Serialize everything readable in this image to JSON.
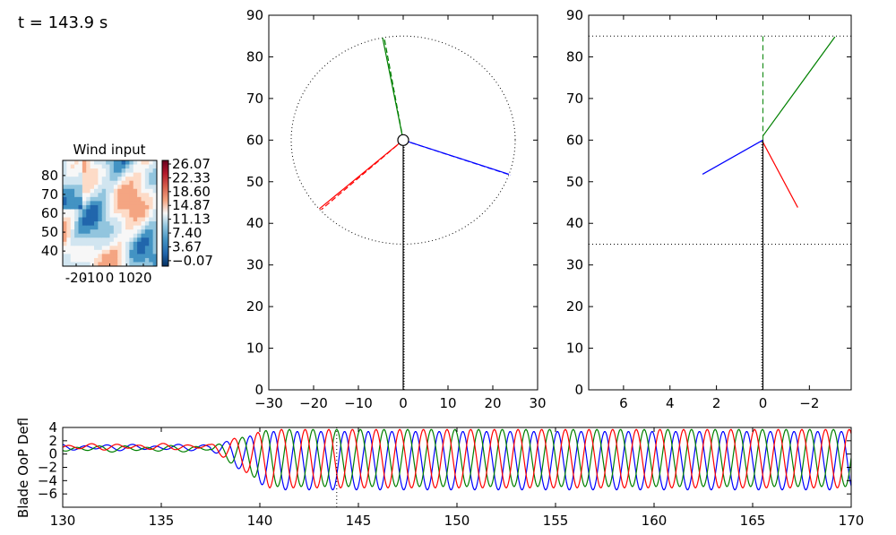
{
  "time_label": "t = 143.9 s",
  "colors": {
    "blade1": "#0000ff",
    "blade2": "#008000",
    "blade3": "#ff0000",
    "tower": "#000000"
  },
  "chart_data": [
    {
      "id": "wind_input",
      "type": "heatmap",
      "title": "Wind input",
      "xlim": [
        -28,
        28
      ],
      "ylim": [
        32,
        88
      ],
      "x_ticks": [
        "-20",
        "-10",
        "0",
        "10",
        "20"
      ],
      "y_ticks": [
        40,
        50,
        60,
        70,
        80
      ],
      "colorbar_ticks": [
        "26.07",
        "22.33",
        "18.60",
        "14.87",
        "11.13",
        "7.40",
        "3.67",
        "−0.07"
      ],
      "colormap": "RdBu_r"
    },
    {
      "id": "rotor_front",
      "type": "line",
      "xlim": [
        -30,
        30
      ],
      "ylim": [
        0,
        90
      ],
      "x_ticks": [
        "−30",
        "−20",
        "−10",
        "0",
        "10",
        "20",
        "30"
      ],
      "y_ticks": [
        "0",
        "10",
        "20",
        "30",
        "40",
        "50",
        "60",
        "70",
        "80",
        "90"
      ],
      "hub": [
        0,
        60
      ],
      "rotor_radius": 25,
      "series": [
        {
          "color": "blue",
          "x": [
            0,
            23.6
          ],
          "y": [
            60,
            51.8
          ]
        },
        {
          "color": "green",
          "x": [
            0,
            -4.6
          ],
          "y": [
            60,
            84.6
          ]
        },
        {
          "color": "red",
          "x": [
            0,
            -18.7
          ],
          "y": [
            60,
            43.5
          ]
        },
        {
          "color": "black",
          "x": [
            0,
            0
          ],
          "y": [
            0,
            60
          ]
        }
      ]
    },
    {
      "id": "rotor_side",
      "type": "line",
      "xlim": [
        7.5,
        -3.8
      ],
      "ylim": [
        0,
        90
      ],
      "x_ticks": [
        "6",
        "4",
        "2",
        "0",
        "−2"
      ],
      "y_ticks": [
        "0",
        "10",
        "20",
        "30",
        "40",
        "50",
        "60",
        "70",
        "80",
        "90"
      ],
      "reference_lines_y": [
        35,
        85
      ],
      "series": [
        {
          "color": "blue",
          "x": [
            0,
            2.6
          ],
          "y": [
            60,
            51.8
          ]
        },
        {
          "color": "green",
          "x": [
            0,
            -3.1
          ],
          "y": [
            61,
            84.8
          ]
        },
        {
          "color": "red",
          "x": [
            0,
            -1.5
          ],
          "y": [
            59.5,
            43.8
          ]
        },
        {
          "color": "black",
          "x": [
            0,
            0
          ],
          "y": [
            0,
            60
          ]
        }
      ]
    },
    {
      "id": "oop_deflection",
      "type": "line",
      "ylabel": "Blade OoP Defl",
      "xlim": [
        130,
        170
      ],
      "ylim": [
        -8,
        4
      ],
      "x_ticks": [
        "130",
        "135",
        "140",
        "145",
        "150",
        "155",
        "160",
        "165",
        "170"
      ],
      "y_ticks": [
        "4",
        "2",
        "0",
        "−2",
        "−4",
        "−6"
      ],
      "current_time": 143.9,
      "oscillation_period_s": 1.2,
      "series": [
        {
          "color": "blue",
          "pre_mean": 1.0,
          "mean": -1.0,
          "amplitude": 4.4
        },
        {
          "color": "green",
          "pre_mean": 0.8,
          "mean": -0.6,
          "amplitude": 4.3
        },
        {
          "color": "red",
          "pre_mean": 1.1,
          "mean": -0.7,
          "amplitude": 4.4
        }
      ]
    }
  ]
}
